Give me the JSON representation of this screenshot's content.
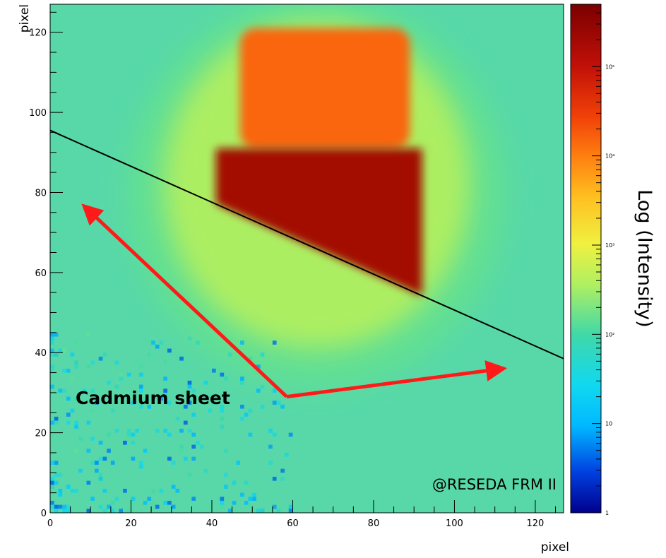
{
  "chart_data": {
    "type": "heatmap",
    "xlabel": "pixel",
    "ylabel": "pixel",
    "xlim": [
      0,
      127
    ],
    "ylim": [
      0,
      127
    ],
    "x_ticks": [
      0,
      20,
      40,
      60,
      80,
      100,
      120
    ],
    "y_ticks": [
      0,
      20,
      40,
      60,
      80,
      100,
      120
    ],
    "colorbar": {
      "label": "Log (Intensity)",
      "scale": "log",
      "range": [
        1,
        500000
      ],
      "ticks": [
        {
          "value": 1,
          "label": "1"
        },
        {
          "value": 10,
          "label": "10"
        },
        {
          "value": 100,
          "label": "10²"
        },
        {
          "value": 1000,
          "label": "10³"
        },
        {
          "value": 10000,
          "label": "10⁴"
        },
        {
          "value": 100000,
          "label": "10⁵"
        }
      ]
    },
    "regions": [
      {
        "name": "background",
        "intensity": 60
      },
      {
        "name": "upper beam block",
        "x_range": [
          47,
          89
        ],
        "y_range": [
          91,
          121
        ],
        "intensity": 15000
      },
      {
        "name": "lower beam block",
        "x_range": [
          41,
          92
        ],
        "y_range": [
          55,
          91
        ],
        "intensity": 200000
      }
    ],
    "line": {
      "from": [
        0,
        95.5
      ],
      "to": [
        127,
        38.5
      ],
      "color": "#000000"
    },
    "annotations": {
      "text": "Cadmium sheet",
      "credit": "@RESEDA FRM II",
      "arrow_origin": [
        58.5,
        29
      ],
      "arrow_targets": [
        [
          8.5,
          76.5
        ],
        [
          112,
          36
        ]
      ],
      "arrow_color": "#ff1a1a"
    }
  }
}
